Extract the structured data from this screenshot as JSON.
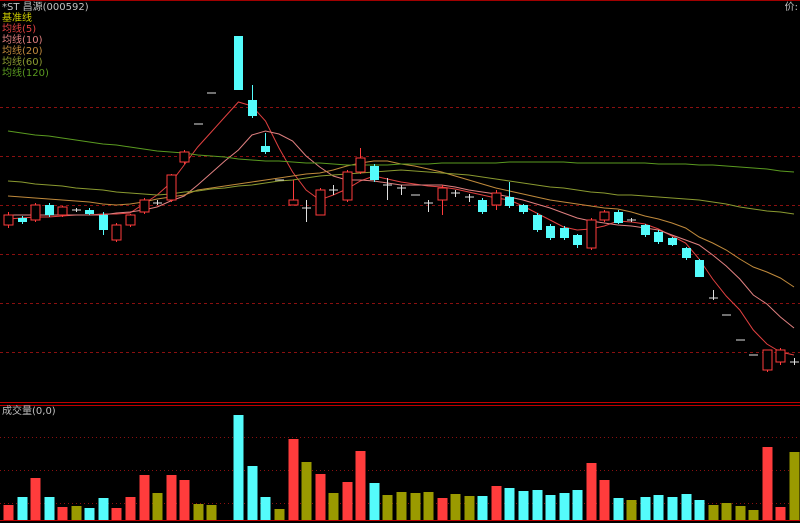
{
  "chart_data": {
    "type": "candlestick",
    "title": "*ST 昌源(000592)",
    "price_label": "价:",
    "baseline_label": "基准线",
    "up_color": "#ff3c3c",
    "down_color": "#54fcfc",
    "flat_color": "#e0e0e0",
    "ylim": [
      0,
      400
    ],
    "gridlines": [
      48,
      97,
      146,
      195,
      244,
      293
    ],
    "open": [
      175,
      182,
      180,
      195,
      185,
      190,
      190,
      185,
      160,
      175,
      188,
      197,
      200,
      238,
      276,
      307,
      null,
      364,
      300,
      254,
      220,
      195,
      192,
      185,
      210,
      200,
      228,
      234,
      215,
      212,
      205,
      197,
      200,
      207,
      203,
      200,
      195,
      203,
      195,
      185,
      174,
      172,
      165,
      152,
      180,
      188,
      180,
      175,
      168,
      162,
      152,
      140,
      102,
      85,
      60,
      45,
      30,
      38,
      38
    ],
    "high": [
      188,
      184,
      197,
      197,
      194,
      192,
      192,
      188,
      177,
      186,
      202,
      200,
      226,
      250,
      276,
      307,
      null,
      364,
      315,
      267,
      220,
      220,
      200,
      212,
      215,
      230,
      252,
      236,
      222,
      215,
      205,
      200,
      215,
      210,
      206,
      202,
      210,
      218,
      196,
      187,
      176,
      174,
      166,
      182,
      190,
      190,
      182,
      176,
      170,
      163,
      153,
      141,
      110,
      85,
      60,
      45,
      50,
      52,
      42
    ],
    "low": [
      172,
      176,
      178,
      183,
      183,
      188,
      185,
      165,
      158,
      173,
      186,
      195,
      198,
      236,
      276,
      307,
      null,
      310,
      282,
      246,
      220,
      195,
      178,
      185,
      205,
      198,
      226,
      218,
      200,
      205,
      205,
      188,
      185,
      203,
      198,
      186,
      190,
      192,
      186,
      168,
      160,
      160,
      152,
      150,
      178,
      176,
      178,
      163,
      156,
      154,
      140,
      123,
      100,
      85,
      60,
      45,
      28,
      35,
      35
    ],
    "close": [
      185,
      178,
      195,
      185,
      193,
      190,
      186,
      170,
      175,
      185,
      200,
      197,
      225,
      248,
      276,
      307,
      null,
      310,
      284,
      248,
      220,
      200,
      192,
      210,
      210,
      228,
      242,
      220,
      215,
      212,
      205,
      197,
      212,
      207,
      203,
      188,
      207,
      194,
      188,
      170,
      162,
      162,
      155,
      180,
      188,
      177,
      180,
      165,
      158,
      155,
      142,
      123,
      102,
      85,
      60,
      45,
      50,
      50,
      38
    ],
    "ma": [
      {
        "name": "均线(5)",
        "color": "#e04040",
        "values": [
          181,
          182,
          183,
          183,
          184,
          185,
          185,
          186,
          186,
          187,
          196,
          205,
          217,
          235,
          253,
          268,
          283,
          298,
          294,
          279,
          252,
          228,
          210,
          200,
          205,
          211,
          219,
          224,
          221,
          218,
          216,
          214,
          213,
          211,
          208,
          205,
          202,
          200,
          194,
          187,
          180,
          173,
          170,
          171,
          174,
          179,
          178,
          176,
          171,
          164,
          157,
          141,
          121,
          104,
          90,
          70,
          56,
          48,
          45
        ]
      },
      {
        "name": "均线(10)",
        "color": "#e08080",
        "values": [
          185,
          185,
          185,
          185,
          185,
          185,
          185,
          185,
          187,
          188,
          190,
          193,
          199,
          204,
          215,
          227,
          239,
          250,
          265,
          269,
          266,
          259,
          244,
          233,
          224,
          220,
          220,
          219,
          217,
          215,
          215,
          215,
          215,
          213,
          210,
          208,
          206,
          203,
          200,
          196,
          192,
          187,
          182,
          179,
          177,
          175,
          174,
          172,
          170,
          165,
          160,
          155,
          145,
          134,
          121,
          105,
          96,
          83,
          72
        ]
      },
      {
        "name": "均线(20)",
        "color": "#c08a3c",
        "values": [
          204,
          203,
          202,
          201,
          200,
          199,
          198,
          196,
          195,
          196,
          198,
          201,
          203,
          205,
          210,
          212,
          214,
          216,
          218,
          220,
          222,
          224,
          226,
          227,
          230,
          234,
          237,
          239,
          239,
          236,
          234,
          231,
          228,
          224,
          220,
          216,
          212,
          209,
          206,
          203,
          200,
          198,
          196,
          194,
          192,
          191,
          188,
          184,
          181,
          177,
          172,
          163,
          157,
          150,
          141,
          133,
          128,
          122,
          113
        ]
      },
      {
        "name": "均线(60)",
        "color": "#8a9a30",
        "values": [
          219,
          218,
          216,
          215,
          214,
          212,
          211,
          210,
          208,
          207,
          206,
          205,
          206,
          208,
          209,
          211,
          212,
          214,
          215,
          217,
          219,
          220,
          222,
          224,
          225,
          226,
          227,
          228,
          229,
          230,
          229,
          228,
          227,
          226,
          225,
          223,
          221,
          219,
          217,
          215,
          213,
          212,
          210,
          208,
          207,
          205,
          205,
          204,
          203,
          202,
          201,
          200,
          198,
          196,
          193,
          191,
          189,
          188,
          186
        ]
      },
      {
        "name": "均线(120)",
        "color": "#5a9a20",
        "values": [
          269,
          267,
          265,
          264,
          262,
          260,
          258,
          256,
          255,
          253,
          251,
          249,
          248,
          247,
          245,
          244,
          243,
          241,
          240,
          239,
          239,
          238,
          237,
          237,
          236,
          235,
          235,
          235,
          235,
          236,
          236,
          236,
          237,
          237,
          237,
          237,
          237,
          238,
          238,
          238,
          238,
          238,
          237,
          237,
          237,
          237,
          237,
          237,
          236,
          236,
          236,
          235,
          235,
          234,
          233,
          232,
          231,
          229,
          228
        ]
      }
    ],
    "volume": {
      "title": "成交量(0,0)",
      "flat_color": "#9a9a00",
      "ylim": [
        0,
        116
      ],
      "gridlines": [
        17,
        50,
        83
      ],
      "values": [
        15,
        23,
        42,
        23,
        13,
        14,
        12,
        22,
        12,
        23,
        45,
        27,
        45,
        40,
        16,
        15,
        null,
        105,
        54,
        23,
        11,
        81,
        58,
        46,
        27,
        38,
        69,
        37,
        25,
        28,
        27,
        28,
        22,
        26,
        24,
        24,
        34,
        32,
        29,
        30,
        25,
        27,
        30,
        57,
        40,
        22,
        20,
        23,
        25,
        23,
        26,
        20,
        15,
        17,
        14,
        10,
        73,
        13,
        68
      ]
    }
  }
}
